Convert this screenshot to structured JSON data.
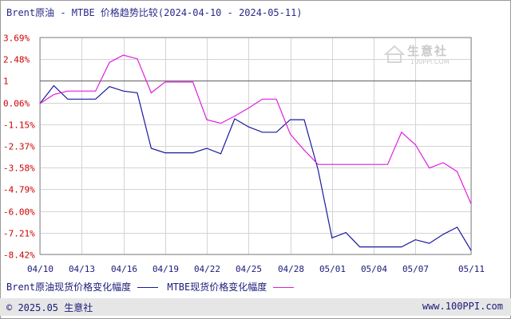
{
  "header": {
    "title": "Brent原油 - MTBE 价格趋势比较(2024-04-10 - 2024-05-11)"
  },
  "watermark": {
    "text": "生意社",
    "url": "100PPI.COM"
  },
  "legend": {
    "series1": "Brent原油现货价格变化幅度",
    "series2": "MTBE现货价格变化幅度"
  },
  "footer": {
    "copyright": "© 2025.05 生意社",
    "site": "www.100PPI.com"
  },
  "colors": {
    "series1": "#1a1a9e",
    "series2": "#e01ee0",
    "axis_labels": "#cc0000",
    "grid": "#d4d4d4",
    "baseline": "#606060"
  },
  "chart_data": {
    "type": "line",
    "title": "Brent原油 - MTBE 价格趋势比较(2024-04-10 - 2024-05-11)",
    "x_ticks": [
      "04/10",
      "04/13",
      "04/16",
      "04/19",
      "04/22",
      "04/25",
      "04/28",
      "05/01",
      "05/04",
      "05/07",
      "05/11"
    ],
    "y_ticks": [
      "3.69%",
      "2.48%",
      "1",
      "0.06%",
      "-1.15%",
      "-2.37%",
      "-3.58%",
      "-4.79%",
      "-6.00%",
      "-7.21%",
      "-8.42%"
    ],
    "y_tick_values": [
      3.69,
      2.48,
      1.27,
      0.06,
      -1.15,
      -2.37,
      -3.58,
      -4.79,
      -6.0,
      -7.21,
      -8.42
    ],
    "ylim": [
      -8.42,
      3.69
    ],
    "baseline": 1.27,
    "grid": true,
    "legend_position": "bottom-left",
    "series": [
      {
        "name": "Brent原油现货价格变化幅度",
        "x": [
          "04/10",
          "04/11",
          "04/12",
          "04/13",
          "04/14",
          "04/15",
          "04/16",
          "04/17",
          "04/18",
          "04/19",
          "04/20",
          "04/21",
          "04/22",
          "04/23",
          "04/24",
          "04/25",
          "04/26",
          "04/27",
          "04/28",
          "04/29",
          "04/30",
          "05/01",
          "05/02",
          "05/03",
          "05/04",
          "05/05",
          "05/06",
          "05/07",
          "05/08",
          "05/09",
          "05/10",
          "05/11"
        ],
        "values": [
          0,
          1.0,
          0.25,
          0.25,
          0.25,
          0.95,
          0.7,
          0.6,
          -2.5,
          -2.75,
          -2.75,
          -2.75,
          -2.5,
          -2.8,
          -0.85,
          -1.3,
          -1.6,
          -1.6,
          -0.9,
          -0.9,
          -3.7,
          -7.5,
          -7.2,
          -8.0,
          -8.0,
          -8.0,
          -8.0,
          -7.6,
          -7.8,
          -7.3,
          -6.9,
          -8.2
        ]
      },
      {
        "name": "MTBE现货价格变化幅度",
        "x": [
          "04/10",
          "04/11",
          "04/12",
          "04/13",
          "04/14",
          "04/15",
          "04/16",
          "04/17",
          "04/18",
          "04/19",
          "04/20",
          "04/21",
          "04/22",
          "04/23",
          "04/24",
          "04/25",
          "04/26",
          "04/27",
          "04/28",
          "04/29",
          "04/30",
          "05/01",
          "05/02",
          "05/03",
          "05/04",
          "05/05",
          "05/06",
          "05/07",
          "05/08",
          "05/09",
          "05/10",
          "05/11"
        ],
        "values": [
          0,
          0.5,
          0.7,
          0.7,
          0.7,
          2.3,
          2.7,
          2.5,
          0.6,
          1.2,
          1.2,
          1.2,
          -0.9,
          -1.1,
          -0.7,
          -0.25,
          0.25,
          0.25,
          -1.7,
          -2.6,
          -3.4,
          -3.4,
          -3.4,
          -3.4,
          -3.4,
          -3.4,
          -1.6,
          -2.3,
          -3.6,
          -3.3,
          -3.8,
          -5.6
        ]
      }
    ]
  }
}
